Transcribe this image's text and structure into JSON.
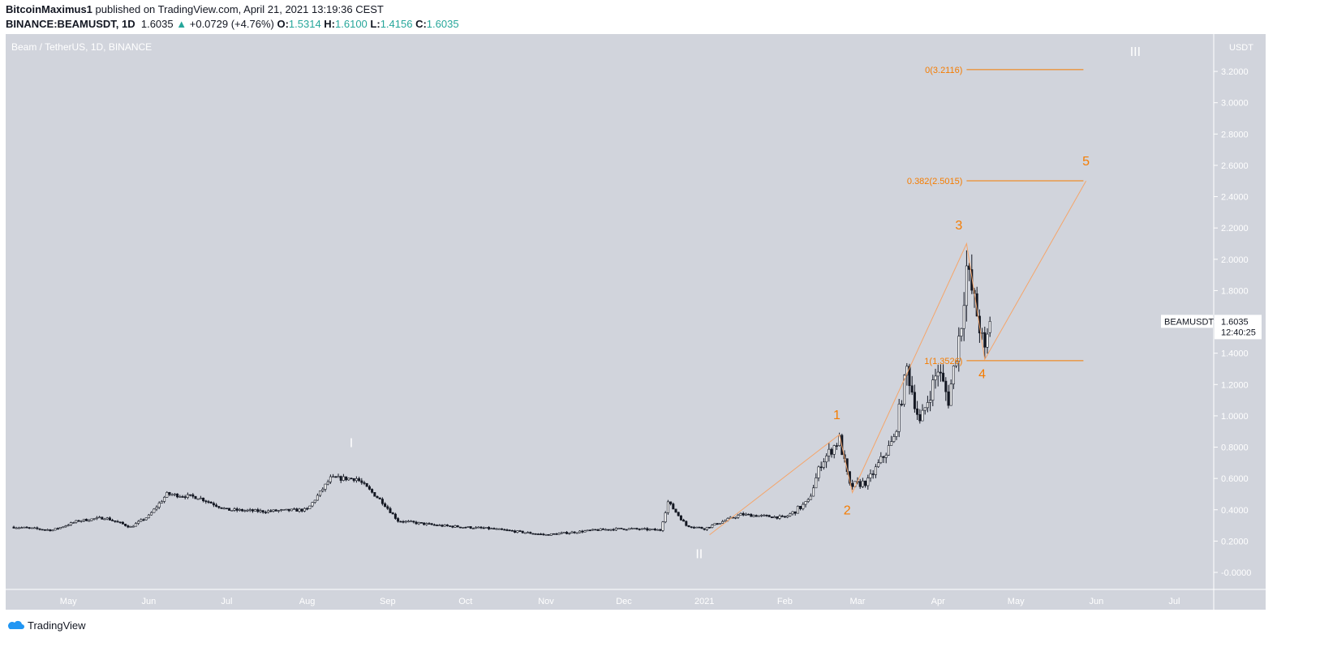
{
  "header": {
    "author": "BitcoinMaximus1",
    "published": "published on TradingView.com, April 21, 2021 13:19:36 CEST",
    "symbol": "BINANCE:BEAMUSDT, 1D",
    "last": "1.6035",
    "change": "+0.0729 (+4.76%)",
    "o_label": "O:",
    "o": "1.5314",
    "h_label": "H:",
    "h": "1.6100",
    "l_label": "L:",
    "l": "1.4156",
    "c_label": "C:",
    "c": "1.6035",
    "up_color": "#26a69a"
  },
  "footer": {
    "brand": "TradingView"
  },
  "chart_data": {
    "type": "candlestick",
    "title": "Beam / TetherUS, 1D, BINANCE",
    "start_date": "2020-04-10",
    "ylabel": "USDT",
    "ylim": [
      -0.06,
      3.4
    ],
    "yticks": [
      "3.2000",
      "3.0000",
      "2.8000",
      "2.6000",
      "2.4000",
      "2.2000",
      "2.0000",
      "1.8000",
      "1.6000",
      "1.4000",
      "1.2000",
      "1.0000",
      "0.8000",
      "0.6000",
      "0.4000",
      "0.2000",
      "-0.0000"
    ],
    "ytick_values": [
      3.2,
      3.0,
      2.8,
      2.6,
      2.4,
      2.2,
      2.0,
      1.8,
      1.6,
      1.4,
      1.2,
      1.0,
      0.8,
      0.6,
      0.4,
      0.2,
      0
    ],
    "xticks": [
      {
        "label": "May",
        "day": 21
      },
      {
        "label": "Jun",
        "day": 52
      },
      {
        "label": "Jul",
        "day": 82
      },
      {
        "label": "Aug",
        "day": 113
      },
      {
        "label": "Sep",
        "day": 144
      },
      {
        "label": "Oct",
        "day": 174
      },
      {
        "label": "Nov",
        "day": 205
      },
      {
        "label": "Dec",
        "day": 235
      },
      {
        "label": "2021",
        "day": 266
      },
      {
        "label": "Feb",
        "day": 297
      },
      {
        "label": "Mar",
        "day": 325
      },
      {
        "label": "Apr",
        "day": 356
      },
      {
        "label": "May",
        "day": 386
      },
      {
        "label": "Jun",
        "day": 417
      },
      {
        "label": "Jul",
        "day": 447
      }
    ],
    "price_anchors": [
      [
        0,
        0.29
      ],
      [
        15,
        0.27
      ],
      [
        25,
        0.33
      ],
      [
        35,
        0.35
      ],
      [
        45,
        0.29
      ],
      [
        52,
        0.36
      ],
      [
        59,
        0.5
      ],
      [
        71,
        0.48
      ],
      [
        82,
        0.4
      ],
      [
        96,
        0.39
      ],
      [
        113,
        0.4
      ],
      [
        122,
        0.6
      ],
      [
        132,
        0.6
      ],
      [
        142,
        0.45
      ],
      [
        148,
        0.33
      ],
      [
        163,
        0.3
      ],
      [
        183,
        0.28
      ],
      [
        205,
        0.24
      ],
      [
        224,
        0.27
      ],
      [
        235,
        0.28
      ],
      [
        249,
        0.27
      ],
      [
        252,
        0.45
      ],
      [
        259,
        0.3
      ],
      [
        266,
        0.28
      ],
      [
        280,
        0.37
      ],
      [
        297,
        0.35
      ],
      [
        306,
        0.45
      ],
      [
        311,
        0.7
      ],
      [
        318,
        0.85
      ],
      [
        322,
        0.55
      ],
      [
        329,
        0.58
      ],
      [
        339,
        0.85
      ],
      [
        344,
        1.3
      ],
      [
        349,
        0.95
      ],
      [
        356,
        1.3
      ],
      [
        360,
        1.1
      ],
      [
        365,
        1.6
      ],
      [
        367,
        1.95
      ],
      [
        371,
        1.65
      ],
      [
        374,
        1.4
      ],
      [
        376,
        1.6
      ]
    ],
    "last_price_label": {
      "symbol": "BEAMUSDT",
      "price": "1.6035",
      "countdown": "12:40:25"
    },
    "fib_levels": [
      {
        "label": "0(3.2116)",
        "value": 3.2116
      },
      {
        "label": "0.382(2.5015)",
        "value": 2.5015
      },
      {
        "label": "1(1.3526)",
        "value": 1.3526
      }
    ],
    "fib_range_days": [
      367,
      412
    ],
    "wave_path": [
      [
        268,
        0.24
      ],
      [
        318,
        0.88
      ],
      [
        323,
        0.51
      ],
      [
        367,
        2.1
      ],
      [
        374,
        1.36
      ],
      [
        413,
        2.5
      ]
    ],
    "wave_labels": [
      {
        "text": "I",
        "day": 130,
        "price": 0.8,
        "color": "#ffffff"
      },
      {
        "text": "II",
        "day": 264,
        "price": 0.09,
        "color": "#ffffff"
      },
      {
        "text": "1",
        "day": 317,
        "price": 0.98,
        "color": "#f57c00"
      },
      {
        "text": "2",
        "day": 321,
        "price": 0.37,
        "color": "#f57c00"
      },
      {
        "text": "3",
        "day": 364,
        "price": 2.19,
        "color": "#f57c00"
      },
      {
        "text": "4",
        "day": 373,
        "price": 1.24,
        "color": "#f57c00"
      },
      {
        "text": "5",
        "day": 413,
        "price": 2.6,
        "color": "#f57c00"
      },
      {
        "text": "III",
        "day": 432,
        "price": 3.3,
        "color": "#ffffff"
      }
    ]
  }
}
